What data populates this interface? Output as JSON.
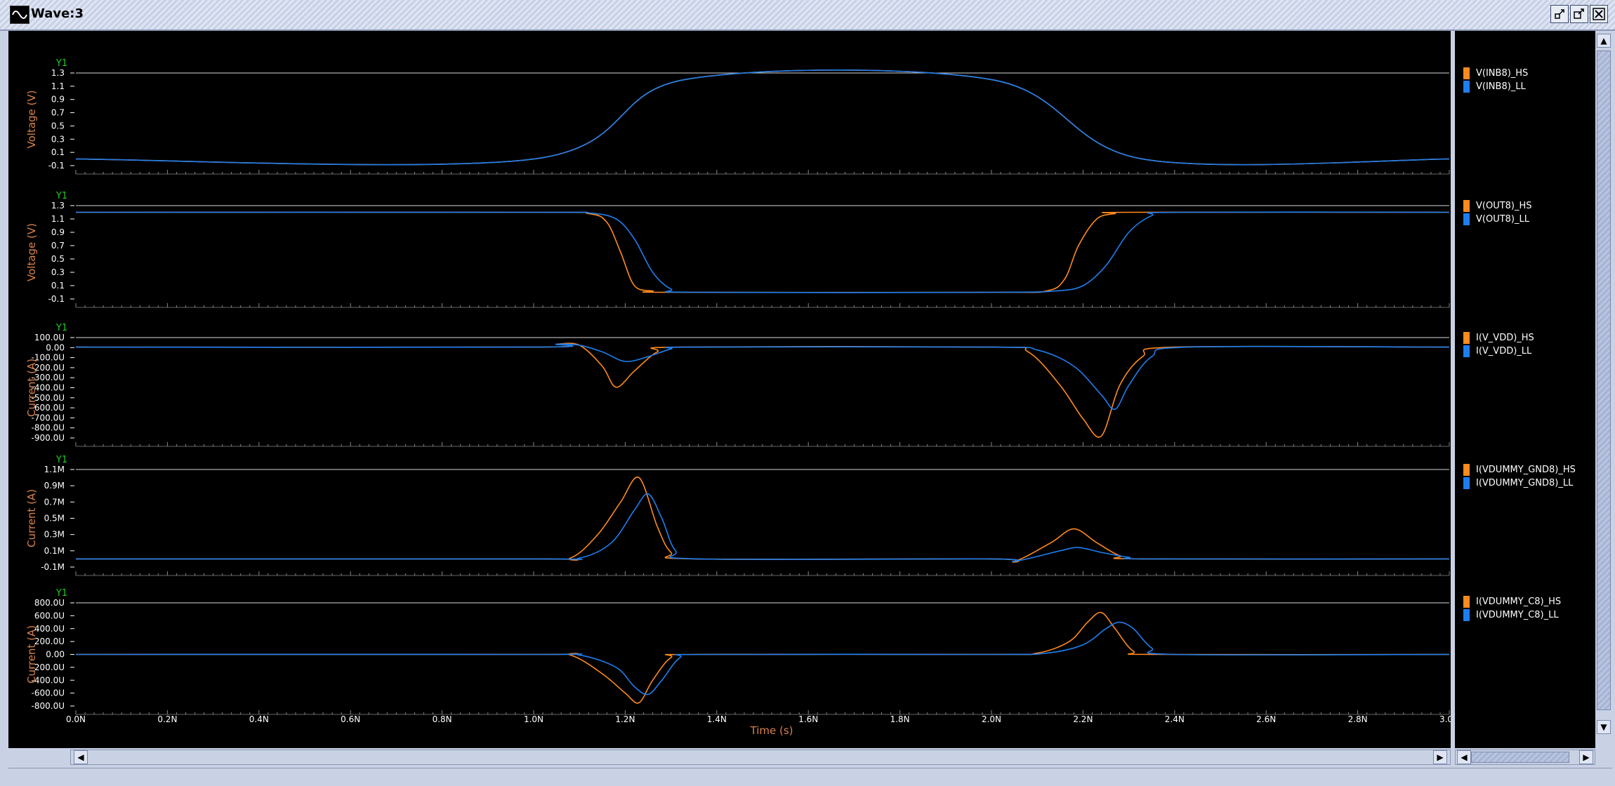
{
  "window": {
    "title": "Wave:3"
  },
  "colors": {
    "hs": "#ff8a1e",
    "ll": "#1e7ef0",
    "axis_label": "#d8824a",
    "y1": "#22cc22",
    "tick": "#ffffff",
    "grid": "#ffffff"
  },
  "x_axis": {
    "label": "Time (s)",
    "ticks": [
      "0.0N",
      "0.2N",
      "0.4N",
      "0.6N",
      "0.8N",
      "1.0N",
      "1.2N",
      "1.4N",
      "1.6N",
      "1.8N",
      "2.0N",
      "2.2N",
      "2.4N",
      "2.6N",
      "2.8N",
      "3.0N"
    ],
    "range_ns": [
      0,
      3.0
    ]
  },
  "panels": [
    {
      "tag": "Y1",
      "ylabel": "Voltage (V)",
      "ticks": [
        "1.3",
        "1.1",
        "0.9",
        "0.7",
        "0.5",
        "0.3",
        "0.1",
        "-0.1"
      ],
      "legend": [
        "V(INB8)_HS",
        "V(INB8)_LL"
      ]
    },
    {
      "tag": "Y1",
      "ylabel": "Voltage (V)",
      "ticks": [
        "1.3",
        "1.1",
        "0.9",
        "0.7",
        "0.5",
        "0.3",
        "0.1",
        "-0.1"
      ],
      "legend": [
        "V(OUT8)_HS",
        "V(OUT8)_LL"
      ]
    },
    {
      "tag": "Y1",
      "ylabel": "Current (A)",
      "ticks": [
        "100.0U",
        "0.00",
        "-100.0U",
        "-200.0U",
        "-300.0U",
        "-400.0U",
        "-500.0U",
        "-600.0U",
        "-700.0U",
        "-800.0U",
        "-900.0U"
      ],
      "legend": [
        "I(V_VDD)_HS",
        "I(V_VDD)_LL"
      ]
    },
    {
      "tag": "Y1",
      "ylabel": "Current (A)",
      "ticks": [
        "1.1M",
        "0.9M",
        "0.7M",
        "0.5M",
        "0.3M",
        "0.1M",
        "-0.1M"
      ],
      "legend": [
        "I(VDUMMY_GND8)_HS",
        "I(VDUMMY_GND8)_LL"
      ]
    },
    {
      "tag": "Y1",
      "ylabel": "Current (A)",
      "ticks": [
        "800.0U",
        "600.0U",
        "400.0U",
        "200.0U",
        "0.00",
        "-200.0U",
        "-400.0U",
        "-600.0U",
        "-800.0U"
      ],
      "legend": [
        "I(VDUMMY_C8)_HS",
        "I(VDUMMY_C8)_LL"
      ]
    }
  ],
  "chart_data": [
    {
      "type": "line",
      "ylabel": "Voltage (V)",
      "xlabel": "Time (s)",
      "ylim": [
        -0.1,
        1.3
      ],
      "series": [
        {
          "name": "V(INB8)_HS",
          "x": [
            0,
            1.0,
            1.33,
            2.0,
            2.33,
            3.0
          ],
          "y": [
            0,
            0,
            1.2,
            1.2,
            0,
            0
          ]
        },
        {
          "name": "V(INB8)_LL",
          "x": [
            0,
            1.0,
            1.33,
            2.0,
            2.33,
            3.0
          ],
          "y": [
            0,
            0,
            1.2,
            1.2,
            0,
            0
          ]
        }
      ]
    },
    {
      "type": "line",
      "ylabel": "Voltage (V)",
      "xlabel": "Time (s)",
      "ylim": [
        -0.1,
        1.3
      ],
      "series": [
        {
          "name": "V(OUT8)_HS",
          "x": [
            0,
            1.0,
            1.12,
            1.16,
            1.19,
            1.22,
            1.26,
            1.3,
            2.0,
            2.12,
            2.16,
            2.19,
            2.23,
            2.27,
            2.3,
            3.0
          ],
          "y": [
            1.2,
            1.2,
            1.18,
            1.05,
            0.6,
            0.1,
            0.02,
            0,
            0,
            0.02,
            0.2,
            0.7,
            1.1,
            1.18,
            1.2,
            1.2
          ]
        },
        {
          "name": "V(OUT8)_LL",
          "x": [
            0,
            1.0,
            1.12,
            1.18,
            1.22,
            1.26,
            1.3,
            1.35,
            2.0,
            2.14,
            2.2,
            2.25,
            2.3,
            2.35,
            2.4,
            3.0
          ],
          "y": [
            1.2,
            1.2,
            1.19,
            1.1,
            0.8,
            0.3,
            0.05,
            0,
            0,
            0.02,
            0.1,
            0.4,
            0.9,
            1.15,
            1.2,
            1.2
          ]
        }
      ]
    },
    {
      "type": "line",
      "ylabel": "Current (A)",
      "xlabel": "Time (s)",
      "ylim": [
        -0.00095,
        0.0001
      ],
      "series": [
        {
          "name": "I(V_VDD)_HS",
          "x": [
            0,
            1.0,
            1.05,
            1.1,
            1.15,
            1.18,
            1.22,
            1.27,
            1.32,
            2.0,
            2.08,
            2.15,
            2.2,
            2.24,
            2.28,
            2.33,
            2.4,
            3.0
          ],
          "y": [
            0,
            0,
            3e-05,
            2e-05,
            -0.0002,
            -0.00042,
            -0.00025,
            -5e-05,
            0,
            0,
            -5e-05,
            -0.0004,
            -0.00075,
            -0.00093,
            -0.0004,
            -0.0001,
            0,
            0
          ]
        },
        {
          "name": "I(V_VDD)_LL",
          "x": [
            0,
            1.0,
            1.05,
            1.1,
            1.15,
            1.2,
            1.25,
            1.3,
            1.35,
            2.0,
            2.1,
            2.18,
            2.24,
            2.27,
            2.3,
            2.35,
            2.43,
            3.0
          ],
          "y": [
            0,
            0,
            3e-05,
            2e-05,
            -5e-05,
            -0.00015,
            -0.0001,
            -2e-05,
            0,
            0,
            -3e-05,
            -0.0002,
            -0.0005,
            -0.00065,
            -0.0004,
            -0.0001,
            0,
            0
          ]
        }
      ]
    },
    {
      "type": "line",
      "ylabel": "Current (A)",
      "xlabel": "Time (s)",
      "ylim": [
        -0.0001,
        0.0011
      ],
      "series": [
        {
          "name": "I(VDUMMY_GND8)_HS",
          "x": [
            0,
            1.0,
            1.08,
            1.14,
            1.19,
            1.23,
            1.27,
            1.3,
            1.35,
            2.0,
            2.05,
            2.13,
            2.18,
            2.23,
            2.28,
            2.33,
            3.0
          ],
          "y": [
            0,
            0,
            1e-05,
            0.0003,
            0.0007,
            0.001,
            0.0004,
            8e-05,
            0,
            0,
            -3e-05,
            0.0002,
            0.00037,
            0.0002,
            4e-05,
            0,
            0
          ]
        },
        {
          "name": "I(VDUMMY_GND8)_LL",
          "x": [
            0,
            1.0,
            1.1,
            1.17,
            1.22,
            1.25,
            1.28,
            1.31,
            1.36,
            2.0,
            2.05,
            2.15,
            2.19,
            2.24,
            2.3,
            2.35,
            3.0
          ],
          "y": [
            0,
            0,
            1e-05,
            0.0002,
            0.0006,
            0.0008,
            0.0005,
            0.0001,
            0,
            0,
            -3e-05,
            0.0001,
            0.00014,
            8e-05,
            2e-05,
            0,
            0
          ]
        }
      ]
    },
    {
      "type": "line",
      "ylabel": "Current (A)",
      "xlabel": "Time (s)",
      "ylim": [
        -0.0008,
        0.0008
      ],
      "series": [
        {
          "name": "I(VDUMMY_C8)_HS",
          "x": [
            0,
            1.0,
            1.08,
            1.15,
            1.2,
            1.23,
            1.26,
            1.3,
            1.35,
            2.0,
            2.1,
            2.17,
            2.21,
            2.24,
            2.27,
            2.31,
            2.36,
            3.0
          ],
          "y": [
            0,
            0,
            -1e-05,
            -0.0003,
            -0.0006,
            -0.00075,
            -0.0004,
            -5e-05,
            0,
            0,
            2e-05,
            0.0002,
            0.0005,
            0.00065,
            0.0004,
            5e-05,
            0,
            0
          ]
        },
        {
          "name": "I(VDUMMY_C8)_LL",
          "x": [
            0,
            1.0,
            1.1,
            1.18,
            1.22,
            1.25,
            1.28,
            1.32,
            1.37,
            2.0,
            2.12,
            2.2,
            2.25,
            2.28,
            2.31,
            2.35,
            2.4,
            3.0
          ],
          "y": [
            0,
            0,
            -1e-05,
            -0.0002,
            -0.0005,
            -0.00062,
            -0.0004,
            -5e-05,
            0,
            0,
            2e-05,
            0.00015,
            0.0004,
            0.0005,
            0.0004,
            0.0001,
            0,
            0
          ]
        }
      ]
    }
  ]
}
